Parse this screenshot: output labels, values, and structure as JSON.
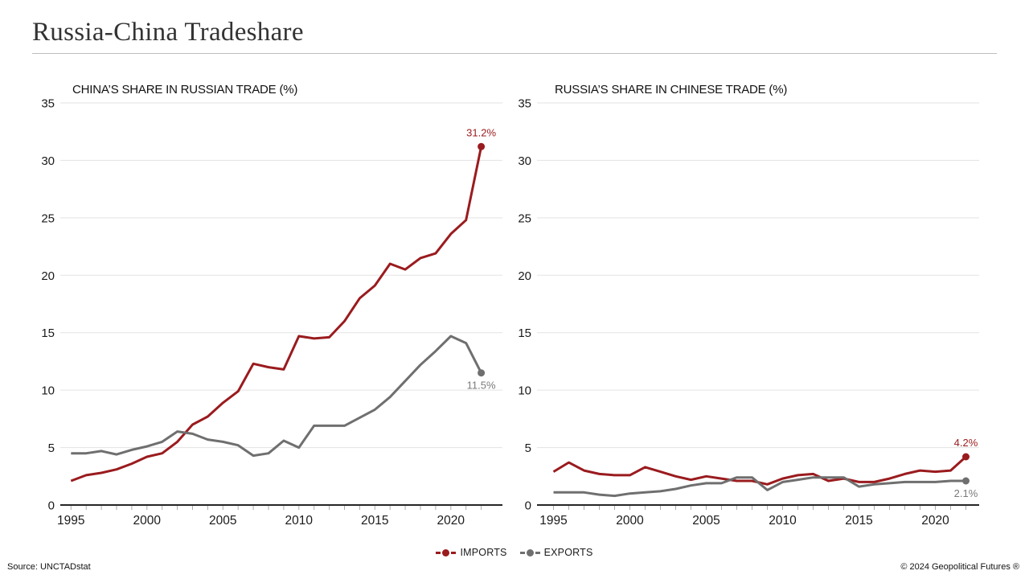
{
  "header": {
    "title": "Russia-China Tradeshare"
  },
  "legend": [
    {
      "label": "IMPORTS",
      "color": "#9a1b1e"
    },
    {
      "label": "EXPORTS",
      "color": "#6f6f6f"
    }
  ],
  "footer": {
    "source": "Source: UNCTADstat",
    "copyright": "© 2024 Geopolitical Futures ®"
  },
  "colors": {
    "imports_red": "#9a1b1e",
    "exports_gray": "#6f6f6f",
    "grid": "#e3e3e3",
    "axis": "#262626",
    "tick": "#aaaaaa",
    "text": "#1a1a1a",
    "exports_label_text": "#7a7a7a"
  },
  "chart_data": [
    {
      "type": "line",
      "title": "CHINA’S SHARE IN RUSSIAN TRADE (%)",
      "x": [
        1995,
        1996,
        1997,
        1998,
        1999,
        2000,
        2001,
        2002,
        2003,
        2004,
        2005,
        2006,
        2007,
        2008,
        2009,
        2010,
        2011,
        2012,
        2013,
        2014,
        2015,
        2016,
        2017,
        2018,
        2019,
        2020,
        2021,
        2022
      ],
      "series": [
        {
          "name": "IMPORTS",
          "color": "#9a1b1e",
          "values": [
            2.1,
            2.6,
            2.8,
            3.1,
            3.6,
            4.2,
            4.5,
            5.5,
            7.0,
            7.7,
            8.9,
            9.9,
            12.3,
            12.0,
            11.8,
            14.7,
            14.5,
            14.6,
            16.0,
            18.0,
            19.1,
            21.0,
            20.5,
            21.5,
            21.9,
            23.6,
            24.8,
            31.2
          ],
          "end_label": "31.2%"
        },
        {
          "name": "EXPORTS",
          "color": "#6f6f6f",
          "values": [
            4.5,
            4.5,
            4.7,
            4.4,
            4.8,
            5.1,
            5.5,
            6.4,
            6.2,
            5.7,
            5.5,
            5.2,
            4.3,
            4.5,
            5.6,
            5.0,
            6.9,
            6.9,
            6.9,
            7.6,
            8.3,
            9.4,
            10.8,
            12.2,
            13.4,
            14.7,
            14.1,
            11.5
          ],
          "end_label": "11.5%"
        }
      ],
      "ylim": [
        0,
        35
      ],
      "y_ticks": [
        0,
        5,
        10,
        15,
        20,
        25,
        30,
        35
      ],
      "x_tick_labels": [
        1995,
        2000,
        2005,
        2010,
        2015,
        2020
      ],
      "grid": true,
      "legend_position": "bottom"
    },
    {
      "type": "line",
      "title": "RUSSIA’S SHARE IN CHINESE TRADE (%)",
      "x": [
        1995,
        1996,
        1997,
        1998,
        1999,
        2000,
        2001,
        2002,
        2003,
        2004,
        2005,
        2006,
        2007,
        2008,
        2009,
        2010,
        2011,
        2012,
        2013,
        2014,
        2015,
        2016,
        2017,
        2018,
        2019,
        2020,
        2021,
        2022
      ],
      "series": [
        {
          "name": "IMPORTS",
          "color": "#9a1b1e",
          "values": [
            2.9,
            3.7,
            3.0,
            2.7,
            2.6,
            2.6,
            3.3,
            2.9,
            2.5,
            2.2,
            2.5,
            2.3,
            2.1,
            2.1,
            1.8,
            2.3,
            2.6,
            2.7,
            2.1,
            2.3,
            2.0,
            2.0,
            2.3,
            2.7,
            3.0,
            2.9,
            3.0,
            4.2
          ],
          "end_label": "4.2%"
        },
        {
          "name": "EXPORTS",
          "color": "#6f6f6f",
          "values": [
            1.1,
            1.1,
            1.1,
            0.9,
            0.8,
            1.0,
            1.1,
            1.2,
            1.4,
            1.7,
            1.9,
            1.9,
            2.4,
            2.4,
            1.3,
            2.0,
            2.2,
            2.4,
            2.4,
            2.4,
            1.6,
            1.8,
            1.9,
            2.0,
            2.0,
            2.0,
            2.1,
            2.1
          ],
          "end_label": "2.1%"
        }
      ],
      "ylim": [
        0,
        35
      ],
      "y_ticks": [
        0,
        5,
        10,
        15,
        20,
        25,
        30,
        35
      ],
      "x_tick_labels": [
        1995,
        2000,
        2005,
        2010,
        2015,
        2020
      ],
      "grid": true,
      "legend_position": "bottom"
    }
  ]
}
